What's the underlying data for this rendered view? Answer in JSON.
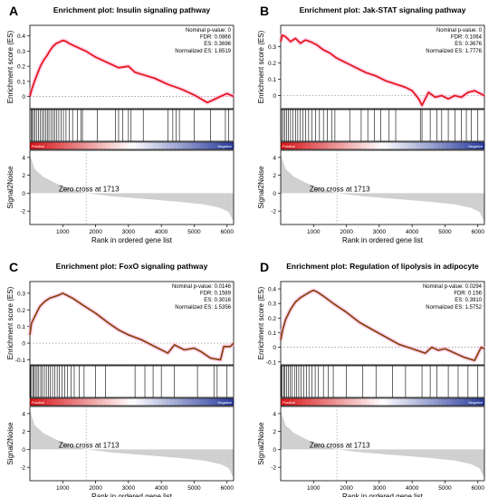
{
  "shared": {
    "x_label": "Rank in ordered gene list",
    "es_label": "Enrichment score (ES)",
    "s2n_label": "Signal2Noise",
    "zero_cross_text": "Zero cross at 1713",
    "positive_text": "Positive",
    "negative_text": "Negative",
    "zero_cross_rank": 1713,
    "n_genes": 6200,
    "x_ticks": [
      1000,
      2000,
      3000,
      4000,
      5000,
      6000
    ],
    "s2n_range": [
      -3.5,
      4.8
    ],
    "s2n_ticks": [
      4,
      2,
      0,
      -2
    ],
    "s2n_curve": [
      [
        0,
        4.3
      ],
      [
        150,
        2.7
      ],
      [
        400,
        1.85
      ],
      [
        800,
        1.1
      ],
      [
        1200,
        0.6
      ],
      [
        1713,
        0
      ],
      [
        2500,
        -0.35
      ],
      [
        3500,
        -0.65
      ],
      [
        4500,
        -0.95
      ],
      [
        5300,
        -1.25
      ],
      [
        5800,
        -1.65
      ],
      [
        6050,
        -2.1
      ],
      [
        6200,
        -3.2
      ]
    ]
  },
  "colors": {
    "es_red": "#e41a1c",
    "es_brown": "#8b4513",
    "halo_pink": "#ffb6e6",
    "heat_red": "#d7191c",
    "heat_blue": "#2c3e9e",
    "s2n_fill": "#d0d0d0"
  },
  "panels": [
    {
      "letter": "A",
      "title": "Enrichment plot: Insulin signaling pathway",
      "stats": [
        "Nominal p-value: 0",
        "FDR: 0.0866",
        "ES: 0.3696",
        "Normalized ES: 1.8519"
      ],
      "line_color_key": "es_red",
      "chart_data": {
        "type": "line",
        "title": "Enrichment plot: Insulin signaling pathway",
        "xlabel": "Rank in ordered gene list",
        "ylabel": "Enrichment score (ES)",
        "ylim": [
          -0.08,
          0.47
        ],
        "yticks": [
          0.0,
          0.1,
          0.2,
          0.3,
          0.4
        ],
        "x": [
          0,
          60,
          140,
          230,
          320,
          420,
          520,
          600,
          700,
          800,
          900,
          1000,
          1100,
          1200,
          1400,
          1700,
          2000,
          2400,
          2700,
          3000,
          3200,
          3500,
          3800,
          4200,
          4600,
          5000,
          5400,
          5600,
          5800,
          6000,
          6100,
          6200
        ],
        "y": [
          0.0,
          0.05,
          0.1,
          0.15,
          0.2,
          0.24,
          0.27,
          0.3,
          0.33,
          0.35,
          0.36,
          0.37,
          0.365,
          0.35,
          0.33,
          0.3,
          0.26,
          0.22,
          0.19,
          0.2,
          0.16,
          0.14,
          0.12,
          0.08,
          0.05,
          0.01,
          -0.04,
          -0.02,
          0.0,
          0.02,
          0.01,
          0.0
        ],
        "hits": [
          40,
          70,
          110,
          150,
          200,
          260,
          320,
          380,
          420,
          480,
          530,
          580,
          640,
          700,
          760,
          820,
          880,
          950,
          1020,
          1100,
          1200,
          1300,
          1450,
          1550,
          1600,
          2050,
          2600,
          2700,
          2820,
          3000,
          3080,
          3450,
          4200,
          4350,
          4450,
          4550,
          5000,
          5500,
          5950,
          6050
        ]
      }
    },
    {
      "letter": "B",
      "title": "Enrichment plot: Jak-STAT signaling pathway",
      "stats": [
        "Nominal p-value: 0",
        "FDR: 0.1064",
        "ES: 0.3676",
        "Normalized ES: 1.7776"
      ],
      "line_color_key": "es_red",
      "chart_data": {
        "type": "line",
        "title": "Enrichment plot: Jak-STAT signaling pathway",
        "xlabel": "Rank in ordered gene list",
        "ylabel": "Enrichment score (ES)",
        "ylim": [
          -0.08,
          0.43
        ],
        "yticks": [
          0.0,
          0.1,
          0.2,
          0.3
        ],
        "x": [
          0,
          50,
          150,
          300,
          450,
          600,
          750,
          900,
          1100,
          1300,
          1500,
          1700,
          2000,
          2300,
          2600,
          2900,
          3200,
          3500,
          3800,
          4000,
          4200,
          4300,
          4500,
          4700,
          4900,
          5100,
          5300,
          5500,
          5700,
          5900,
          6100,
          6200
        ],
        "y": [
          0.33,
          0.37,
          0.36,
          0.33,
          0.35,
          0.32,
          0.34,
          0.33,
          0.31,
          0.28,
          0.26,
          0.23,
          0.2,
          0.17,
          0.14,
          0.12,
          0.09,
          0.07,
          0.05,
          0.03,
          -0.02,
          -0.06,
          0.02,
          -0.01,
          0.0,
          -0.02,
          0.0,
          -0.01,
          0.02,
          0.03,
          0.01,
          0.0
        ],
        "hits": [
          30,
          80,
          130,
          180,
          240,
          300,
          370,
          450,
          520,
          600,
          680,
          760,
          850,
          950,
          1060,
          1180,
          1300,
          1420,
          1550,
          1650,
          2100,
          2450,
          2650,
          2850,
          3050,
          3300,
          3500,
          4250,
          4300,
          4550,
          4750,
          4900,
          5100,
          5300,
          5500,
          5650,
          5800,
          6000
        ]
      }
    },
    {
      "letter": "C",
      "title": "Enrichment plot: FoxO signaling pathway",
      "stats": [
        "Nominal p-value: 0.0146",
        "FDR: 0.1589",
        "ES: 0.3016",
        "Normalized ES: 1.5356"
      ],
      "line_color_key": "es_brown",
      "chart_data": {
        "type": "line",
        "title": "Enrichment plot: FoxO signaling pathway",
        "xlabel": "Rank in ordered gene list",
        "ylabel": "Enrichment score (ES)",
        "ylim": [
          -0.13,
          0.37
        ],
        "yticks": [
          -0.1,
          0.0,
          0.1,
          0.2,
          0.3
        ],
        "x": [
          0,
          50,
          150,
          300,
          450,
          600,
          750,
          900,
          1000,
          1100,
          1300,
          1600,
          2000,
          2400,
          2700,
          3000,
          3400,
          3800,
          4200,
          4400,
          4500,
          4700,
          5000,
          5200,
          5500,
          5800,
          5900,
          6100,
          6200
        ],
        "y": [
          0.05,
          0.12,
          0.16,
          0.22,
          0.25,
          0.27,
          0.28,
          0.29,
          0.3,
          0.29,
          0.27,
          0.23,
          0.18,
          0.12,
          0.08,
          0.05,
          0.02,
          -0.02,
          -0.06,
          -0.01,
          -0.02,
          -0.04,
          -0.03,
          -0.05,
          -0.09,
          -0.1,
          -0.02,
          -0.02,
          0.0
        ],
        "hits": [
          20,
          50,
          90,
          130,
          170,
          220,
          270,
          330,
          380,
          440,
          500,
          560,
          620,
          690,
          760,
          830,
          900,
          980,
          1060,
          1150,
          1250,
          1350,
          1500,
          1650,
          2000,
          2300,
          3200,
          3500,
          3750,
          4000,
          4400,
          5100,
          5600,
          5700,
          6000
        ]
      }
    },
    {
      "letter": "D",
      "title": "Enrichment plot: Regulation of lipolysis in adipocyte",
      "stats": [
        "Nominal p-value: 0.0294",
        "FDR: 0.156",
        "ES: 0.3910",
        "Normalized ES: 1.5752"
      ],
      "line_color_key": "es_brown",
      "chart_data": {
        "type": "line",
        "title": "Enrichment plot: Regulation of lipolysis in adipocyte",
        "xlabel": "Rank in ordered gene list",
        "ylabel": "Enrichment score (ES)",
        "ylim": [
          -0.12,
          0.45
        ],
        "yticks": [
          -0.1,
          0.0,
          0.1,
          0.2,
          0.3,
          0.4
        ],
        "x": [
          0,
          60,
          150,
          300,
          450,
          600,
          750,
          900,
          1000,
          1100,
          1300,
          1600,
          2000,
          2400,
          2800,
          3200,
          3600,
          4000,
          4400,
          4600,
          4800,
          5000,
          5300,
          5600,
          5900,
          6100,
          6200
        ],
        "y": [
          0.05,
          0.12,
          0.19,
          0.26,
          0.31,
          0.34,
          0.36,
          0.38,
          0.39,
          0.38,
          0.35,
          0.3,
          0.24,
          0.17,
          0.12,
          0.07,
          0.02,
          -0.01,
          -0.04,
          0.0,
          -0.02,
          -0.01,
          -0.04,
          -0.07,
          -0.09,
          0.0,
          -0.01
        ],
        "hits": [
          20,
          50,
          90,
          130,
          180,
          230,
          290,
          350,
          420,
          480,
          550,
          620,
          700,
          780,
          860,
          950,
          1050,
          1150,
          1300,
          1450,
          1600,
          2000,
          2500,
          2900,
          3400,
          3800,
          4300,
          4550,
          4750,
          5100,
          5400,
          5700,
          6000
        ]
      }
    }
  ]
}
